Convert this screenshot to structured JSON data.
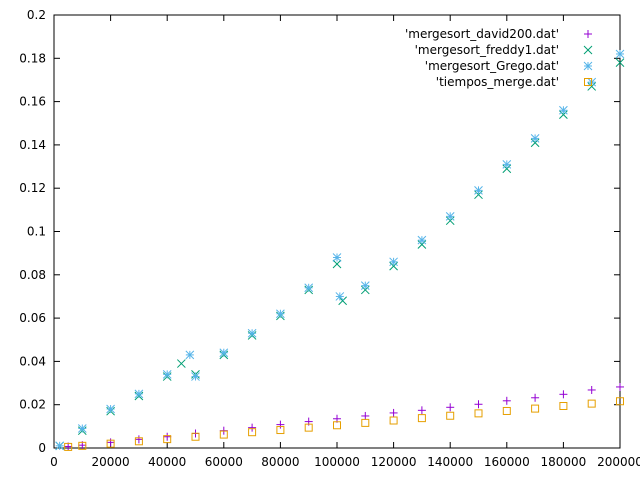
{
  "chart_data": {
    "type": "scatter",
    "title": "",
    "xlabel": "",
    "ylabel": "",
    "xlim": [
      0,
      200000
    ],
    "ylim": [
      0,
      0.2
    ],
    "x_ticks": [
      "0",
      "20000",
      "40000",
      "60000",
      "80000",
      "100000",
      "120000",
      "140000",
      "160000",
      "180000",
      "200000"
    ],
    "y_ticks": [
      "0",
      "0.02",
      "0.04",
      "0.06",
      "0.08",
      "0.1",
      "0.12",
      "0.14",
      "0.16",
      "0.18",
      "0.2"
    ],
    "grid": false,
    "legend_position": "top-right",
    "series": [
      {
        "name": "'mergesort_david200.dat'",
        "marker": "plus",
        "color": "#9400d3",
        "x": [
          5000,
          10000,
          20000,
          30000,
          40000,
          50000,
          60000,
          70000,
          80000,
          90000,
          100000,
          110000,
          120000,
          130000,
          140000,
          150000,
          160000,
          170000,
          180000,
          190000,
          200000
        ],
        "y": [
          0.0007,
          0.0013,
          0.0026,
          0.004,
          0.0052,
          0.0067,
          0.008,
          0.0094,
          0.0108,
          0.0122,
          0.0135,
          0.0148,
          0.0162,
          0.0174,
          0.0188,
          0.0202,
          0.0218,
          0.0232,
          0.0248,
          0.0268,
          0.0282
        ]
      },
      {
        "name": "'mergesort_freddy1.dat'",
        "marker": "cross",
        "color": "#009e73",
        "x": [
          2000,
          10000,
          20000,
          30000,
          40000,
          45000,
          50000,
          60000,
          70000,
          80000,
          90000,
          100000,
          102000,
          110000,
          120000,
          130000,
          140000,
          150000,
          160000,
          170000,
          180000,
          190000,
          200000
        ],
        "y": [
          0.001,
          0.008,
          0.017,
          0.024,
          0.033,
          0.039,
          0.034,
          0.043,
          0.052,
          0.061,
          0.073,
          0.085,
          0.068,
          0.073,
          0.084,
          0.094,
          0.105,
          0.117,
          0.129,
          0.141,
          0.154,
          0.167,
          0.178
        ]
      },
      {
        "name": "'mergesort_Grego.dat'",
        "marker": "star",
        "color": "#56b4e9",
        "x": [
          2000,
          10000,
          20000,
          30000,
          40000,
          48000,
          50000,
          60000,
          70000,
          80000,
          90000,
          100000,
          101000,
          110000,
          120000,
          130000,
          140000,
          150000,
          160000,
          170000,
          180000,
          190000,
          200000
        ],
        "y": [
          0.001,
          0.009,
          0.018,
          0.025,
          0.034,
          0.043,
          0.033,
          0.044,
          0.053,
          0.062,
          0.074,
          0.088,
          0.07,
          0.075,
          0.086,
          0.096,
          0.107,
          0.119,
          0.131,
          0.143,
          0.156,
          0.169,
          0.182
        ]
      },
      {
        "name": "'tiempos_merge.dat'",
        "marker": "box",
        "color": "#e69f00",
        "x": [
          5000,
          10000,
          20000,
          30000,
          40000,
          50000,
          60000,
          70000,
          80000,
          90000,
          100000,
          110000,
          120000,
          130000,
          140000,
          150000,
          160000,
          170000,
          180000,
          190000,
          200000
        ],
        "y": [
          0.0005,
          0.001,
          0.002,
          0.0031,
          0.0041,
          0.0052,
          0.0062,
          0.0073,
          0.0083,
          0.0094,
          0.0105,
          0.0116,
          0.0127,
          0.0138,
          0.0149,
          0.016,
          0.0171,
          0.0182,
          0.0194,
          0.0205,
          0.0216
        ]
      }
    ]
  }
}
